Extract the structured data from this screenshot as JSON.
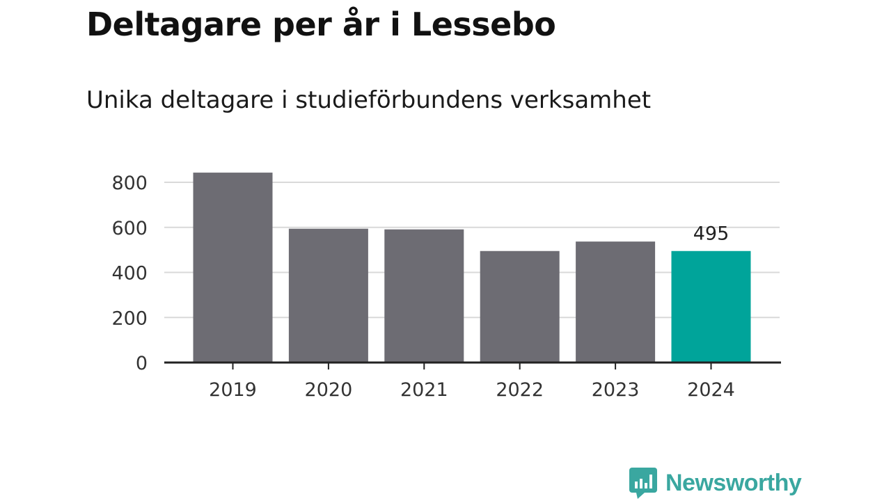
{
  "title": "Deltagare per år i Lessebo",
  "subtitle": "Unika deltagare i studieförbundens verksamhet",
  "brand": {
    "name": "Newsworthy",
    "icon": "newsworthy-logo-icon",
    "color": "#3aa7a0"
  },
  "colors": {
    "bar": "#6d6c73",
    "highlight": "#00a49a",
    "grid": "#d9d9d9",
    "axis": "#222222"
  },
  "chart_data": {
    "type": "bar",
    "categories": [
      "2019",
      "2020",
      "2021",
      "2022",
      "2023",
      "2024"
    ],
    "values": [
      843,
      594,
      591,
      495,
      537,
      495
    ],
    "highlight_index": 5,
    "data_labels": {
      "5": "495"
    },
    "yticks": [
      0,
      200,
      400,
      600,
      800
    ],
    "ylim": [
      0,
      800
    ],
    "grid": true,
    "legend": "none"
  }
}
